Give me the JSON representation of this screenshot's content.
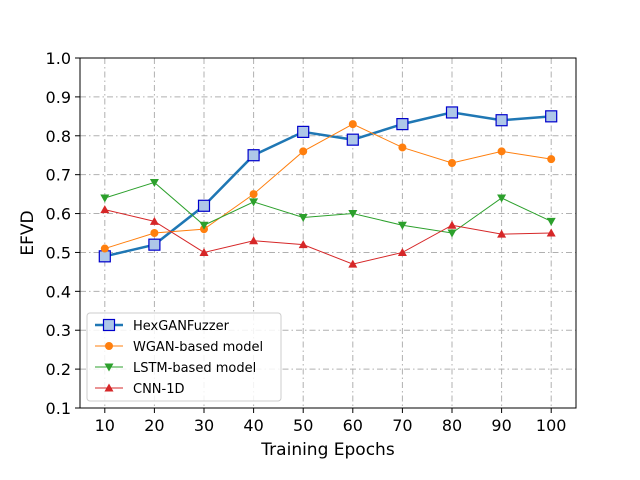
{
  "chart_data": {
    "type": "line",
    "title": "",
    "xlabel": "Training Epochs",
    "ylabel": "EFVD",
    "x": [
      10,
      20,
      30,
      40,
      50,
      60,
      70,
      80,
      90,
      100
    ],
    "x_tick_labels": [
      "10",
      "20",
      "30",
      "40",
      "50",
      "60",
      "70",
      "80",
      "90",
      "100"
    ],
    "y_tick_labels": [
      "0.1",
      "0.2",
      "0.3",
      "0.4",
      "0.5",
      "0.6",
      "0.7",
      "0.8",
      "0.9",
      "1.0"
    ],
    "xlim": [
      5,
      105
    ],
    "ylim": [
      0.1,
      1.0
    ],
    "grid": true,
    "legend_position": "lower-left",
    "series": [
      {
        "name": "HexGANFuzzer",
        "values": [
          0.49,
          0.52,
          0.62,
          0.75,
          0.81,
          0.79,
          0.83,
          0.86,
          0.84,
          0.85
        ],
        "color": "#1f77b4",
        "marker": "square",
        "marker_fill": "#aec7e8",
        "marker_edge": "#0000cc"
      },
      {
        "name": "WGAN-based model",
        "values": [
          0.51,
          0.55,
          0.56,
          0.65,
          0.76,
          0.83,
          0.77,
          0.73,
          0.76,
          0.74
        ],
        "color": "#ff7f0e",
        "marker": "circle"
      },
      {
        "name": "LSTM-based model",
        "values": [
          0.64,
          0.68,
          0.57,
          0.63,
          0.59,
          0.6,
          0.57,
          0.55,
          0.64,
          0.58
        ],
        "color": "#2ca02c",
        "marker": "triangle-down"
      },
      {
        "name": "CNN-1D",
        "values": [
          0.61,
          0.58,
          0.5,
          0.53,
          0.52,
          0.47,
          0.5,
          0.57,
          0.547,
          0.55
        ],
        "color": "#d62728",
        "marker": "triangle-up"
      }
    ]
  }
}
